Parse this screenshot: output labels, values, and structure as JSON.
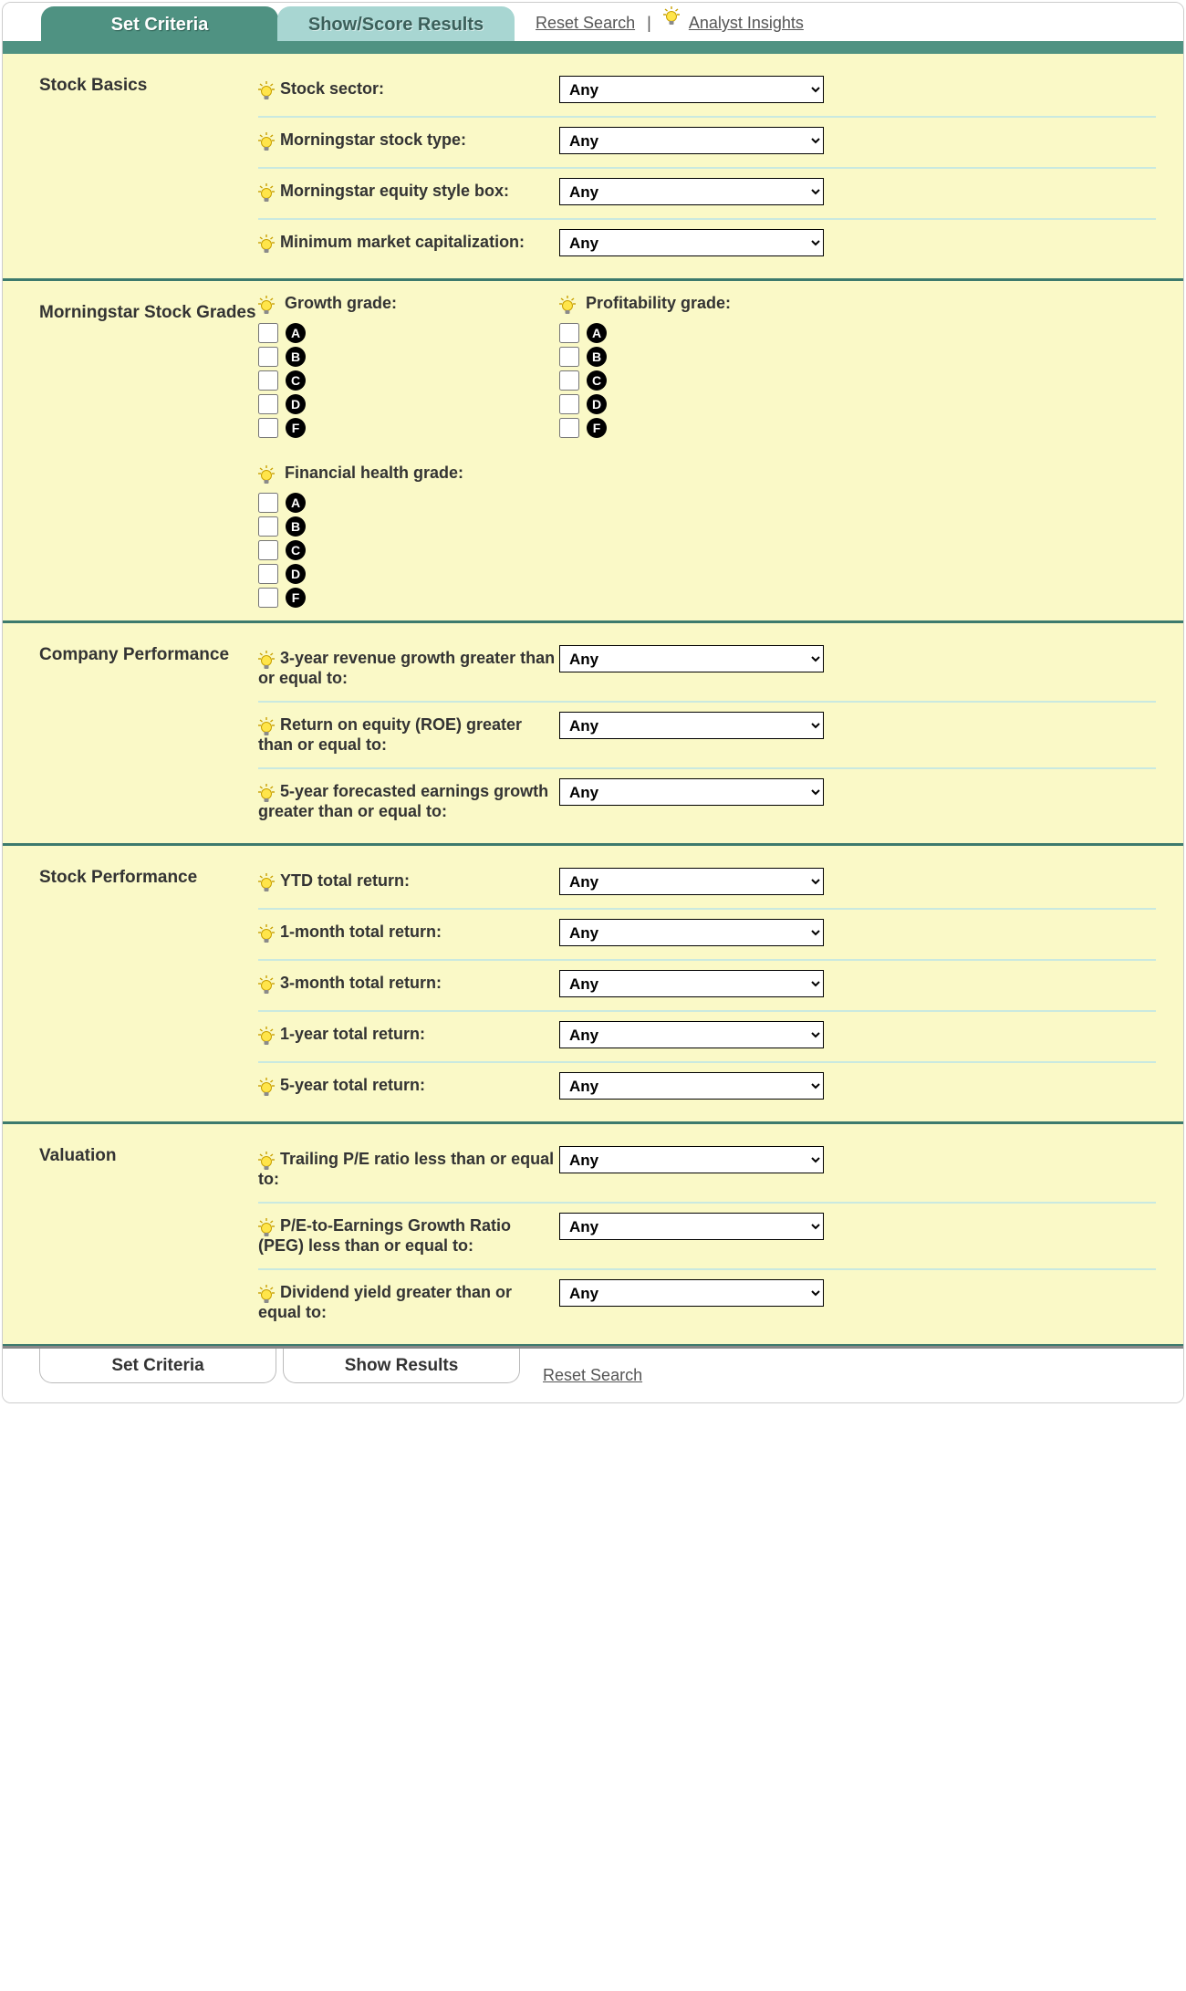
{
  "tabs": {
    "set_criteria": "Set Criteria",
    "show_score_results": "Show/Score Results",
    "reset_search": "Reset Search",
    "analyst_insights": "Analyst Insights"
  },
  "default_option": "Any",
  "grade_letters": [
    "A",
    "B",
    "C",
    "D",
    "F"
  ],
  "sections": {
    "stock_basics": {
      "title": "Stock Basics",
      "items": [
        {
          "label": "Stock sector:"
        },
        {
          "label": "Morningstar stock type:"
        },
        {
          "label": "Morningstar equity style box:"
        },
        {
          "label": "Minimum market capitalization:"
        }
      ]
    },
    "grades": {
      "title": "Morningstar Stock Grades",
      "growth": "Growth grade:",
      "profitability": "Profitability grade:",
      "financial_health": "Financial health grade:"
    },
    "company_perf": {
      "title": "Company Performance",
      "items": [
        {
          "label": "3-year revenue growth greater than or equal to:"
        },
        {
          "label": "Return on equity (ROE) greater than or equal to:"
        },
        {
          "label": "5-year forecasted earnings growth greater than or equal to:"
        }
      ]
    },
    "stock_perf": {
      "title": "Stock Performance",
      "items": [
        {
          "label": "YTD total return:"
        },
        {
          "label": "1-month total return:"
        },
        {
          "label": "3-month total return:"
        },
        {
          "label": "1-year total return:"
        },
        {
          "label": "5-year total return:"
        }
      ]
    },
    "valuation": {
      "title": "Valuation",
      "items": [
        {
          "label": "Trailing P/E ratio less than or equal to:"
        },
        {
          "label": "P/E-to-Earnings Growth Ratio (PEG) less than or equal to:"
        },
        {
          "label": "Dividend yield greater than or equal to:"
        }
      ]
    }
  },
  "bottom": {
    "set_criteria": "Set Criteria",
    "show_results": "Show Results",
    "reset_search": "Reset Search"
  },
  "colors": {
    "page_bg": "#faf9c7",
    "teal": "#4f9282",
    "tab_inactive": "#a8d6d2",
    "section_divider": "#3c7a6d",
    "row_divider": "#c9e9e0"
  }
}
